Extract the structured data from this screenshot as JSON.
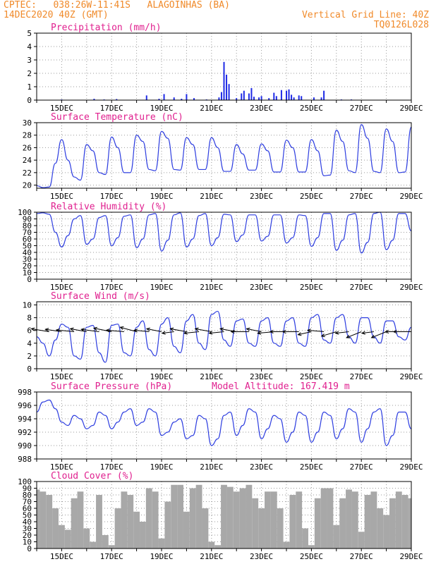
{
  "header": {
    "line1_left": "CPTEC:   038:26W-11:41S   ALAGOINHAS (BA)",
    "line2_left": "14DEC2020 40Z (GMT)",
    "line1_right": "Vertical Grid Line: 40Z",
    "line2_right": "TQ0126L028"
  },
  "colors": {
    "header_text": "#f08a2a",
    "panel_title": "#e0208f",
    "series_line": "#2f3fe0",
    "precip_bars": "#1f2be6",
    "cloud_fill": "#a8a8a8",
    "wind_arrow": "#000000"
  },
  "x_axis": {
    "tick_labels": [
      "15DEC",
      "17DEC",
      "19DEC",
      "21DEC",
      "23DEC",
      "25DEC",
      "27DEC",
      "29DEC"
    ],
    "start_day": 14.0,
    "end_day": 29.0
  },
  "chart_data": [
    {
      "type": "bar",
      "title": "Precipitation (mm/h)",
      "ylim": [
        0,
        5
      ],
      "yticks": [
        0,
        1,
        2,
        3,
        4,
        5
      ],
      "grid": true,
      "x": [
        15.0,
        16.3,
        16.7,
        17.2,
        18.4,
        18.9,
        19.1,
        19.5,
        19.8,
        20.0,
        20.3,
        20.8,
        21.3,
        21.4,
        21.5,
        21.6,
        21.7,
        22.0,
        22.2,
        22.3,
        22.5,
        22.6,
        22.7,
        22.9,
        23.0,
        23.3,
        23.5,
        23.6,
        23.8,
        24.0,
        24.1,
        24.2,
        24.3,
        24.5,
        24.6,
        25.1,
        25.4,
        25.5,
        26.2,
        26.6
      ],
      "values": [
        0.05,
        0.1,
        0.05,
        0.08,
        0.35,
        0.1,
        0.45,
        0.2,
        0.1,
        0.45,
        0.15,
        0.05,
        0.2,
        0.6,
        2.85,
        1.9,
        1.2,
        0.15,
        0.5,
        0.7,
        0.5,
        0.9,
        0.25,
        0.2,
        0.3,
        0.15,
        0.55,
        0.3,
        0.75,
        0.7,
        0.8,
        0.4,
        0.2,
        0.35,
        0.3,
        0.2,
        0.2,
        0.7,
        0.05,
        0.05
      ]
    },
    {
      "type": "line",
      "title": "Surface Temperature (nC)",
      "ylim": [
        19.5,
        30
      ],
      "yticks": [
        20,
        22,
        24,
        26,
        28,
        30
      ],
      "grid": true,
      "x": [
        14.0,
        14.25,
        14.5,
        14.75,
        15.0,
        15.25,
        15.5,
        15.75,
        16.0,
        16.25,
        16.5,
        16.75,
        17.0,
        17.25,
        17.5,
        17.75,
        18.0,
        18.25,
        18.5,
        18.75,
        19.0,
        19.25,
        19.5,
        19.75,
        20.0,
        20.25,
        20.5,
        20.75,
        21.0,
        21.25,
        21.5,
        21.75,
        22.0,
        22.25,
        22.5,
        22.75,
        23.0,
        23.25,
        23.5,
        23.75,
        24.0,
        24.25,
        24.5,
        24.75,
        25.0,
        25.25,
        25.5,
        25.75,
        26.0,
        26.25,
        26.5,
        26.75,
        27.0,
        27.25,
        27.5,
        27.75,
        28.0,
        28.25,
        28.5,
        28.75,
        29.0
      ],
      "values": [
        19.9,
        19.6,
        19.7,
        23.5,
        27.3,
        24.0,
        21.3,
        20.8,
        26.5,
        25.5,
        22.0,
        21.7,
        27.7,
        26.0,
        22.0,
        22.0,
        28.0,
        27.0,
        22.5,
        22.3,
        28.6,
        27.5,
        22.5,
        22.4,
        27.6,
        26.5,
        22.5,
        22.5,
        27.6,
        26.0,
        22.2,
        22.2,
        26.5,
        25.0,
        22.4,
        22.4,
        26.6,
        25.5,
        22.1,
        22.1,
        27.2,
        26.0,
        22.1,
        22.1,
        27.3,
        25.5,
        21.5,
        21.6,
        28.8,
        27.0,
        22.3,
        22.0,
        29.7,
        27.5,
        22.2,
        22.0,
        29.0,
        27.0,
        22.0,
        22.1,
        29.3
      ]
    },
    {
      "type": "line",
      "title": "Relative Humidity (%)",
      "ylim": [
        0,
        100
      ],
      "yticks": [
        0,
        10,
        20,
        30,
        40,
        50,
        60,
        70,
        80,
        90,
        100
      ],
      "grid": true,
      "x": [
        14.0,
        14.25,
        14.5,
        14.75,
        15.0,
        15.25,
        15.5,
        15.75,
        16.0,
        16.25,
        16.5,
        16.75,
        17.0,
        17.25,
        17.5,
        17.75,
        18.0,
        18.25,
        18.5,
        18.75,
        19.0,
        19.25,
        19.5,
        19.75,
        20.0,
        20.25,
        20.5,
        20.75,
        21.0,
        21.25,
        21.5,
        21.75,
        22.0,
        22.25,
        22.5,
        22.75,
        23.0,
        23.25,
        23.5,
        23.75,
        24.0,
        24.25,
        24.5,
        24.75,
        25.0,
        25.25,
        25.5,
        25.75,
        26.0,
        26.25,
        26.5,
        26.75,
        27.0,
        27.25,
        27.5,
        27.75,
        28.0,
        28.25,
        28.5,
        28.75,
        29.0
      ],
      "values": [
        98,
        99,
        97,
        70,
        48,
        65,
        90,
        95,
        52,
        60,
        92,
        95,
        50,
        62,
        94,
        96,
        47,
        60,
        96,
        98,
        42,
        58,
        96,
        99,
        48,
        60,
        95,
        98,
        50,
        62,
        97,
        96,
        56,
        66,
        96,
        96,
        57,
        64,
        96,
        96,
        54,
        62,
        96,
        95,
        49,
        62,
        98,
        98,
        43,
        58,
        96,
        98,
        39,
        55,
        98,
        100,
        44,
        58,
        98,
        98,
        72
      ]
    },
    {
      "type": "line",
      "title": "Surface Wind (m/s)",
      "ylim": [
        0,
        10.5
      ],
      "yticks": [
        0,
        2,
        4,
        6,
        8,
        10
      ],
      "grid": true,
      "x": [
        14.0,
        14.25,
        14.5,
        14.75,
        15.0,
        15.25,
        15.5,
        15.75,
        16.0,
        16.25,
        16.5,
        16.75,
        17.0,
        17.25,
        17.5,
        17.75,
        18.0,
        18.25,
        18.5,
        18.75,
        19.0,
        19.25,
        19.5,
        19.75,
        20.0,
        20.25,
        20.5,
        20.75,
        21.0,
        21.25,
        21.5,
        21.75,
        22.0,
        22.25,
        22.5,
        22.75,
        23.0,
        23.25,
        23.5,
        23.75,
        24.0,
        24.25,
        24.5,
        24.75,
        25.0,
        25.25,
        25.5,
        25.75,
        26.0,
        26.25,
        26.5,
        26.75,
        27.0,
        27.25,
        27.5,
        27.75,
        28.0,
        28.25,
        28.5,
        28.75,
        29.0
      ],
      "values": [
        5.0,
        4.0,
        2.0,
        4.5,
        7.0,
        6.5,
        2.0,
        1.5,
        6.5,
        6.8,
        2.5,
        1.0,
        6.8,
        7.0,
        2.5,
        2.0,
        6.5,
        7.5,
        3.0,
        2.0,
        7.0,
        8.0,
        3.5,
        2.5,
        7.5,
        8.5,
        4.0,
        3.0,
        8.5,
        9.0,
        4.5,
        3.5,
        7.5,
        7.8,
        4.0,
        3.5,
        7.5,
        8.0,
        4.0,
        3.5,
        7.5,
        8.0,
        4.0,
        3.5,
        8.0,
        8.5,
        4.5,
        4.0,
        8.0,
        8.5,
        5.0,
        4.0,
        8.0,
        8.0,
        5.0,
        4.0,
        7.5,
        7.5,
        5.0,
        4.5,
        6.5
      ],
      "arrows": {
        "y": 5.8,
        "x": [
          14.5,
          15.0,
          15.5,
          16.0,
          16.5,
          17.0,
          17.5,
          18.0,
          18.5,
          19.0,
          19.5,
          20.0,
          20.5,
          21.0,
          21.5,
          22.0,
          22.5,
          23.0,
          23.5,
          24.0,
          24.5,
          25.0,
          25.5,
          26.0,
          26.5,
          27.0,
          27.5,
          28.0,
          28.5,
          29.0
        ],
        "u": [
          -6,
          -5.5,
          -6,
          -5.5,
          -6,
          -6,
          -6,
          -5.5,
          -5,
          -5,
          -4,
          -5.5,
          -5,
          -5.5,
          -5,
          -5.5,
          -6,
          -5,
          -5.5,
          -5.5,
          -5.5,
          -4.5,
          -5.5,
          -5,
          -4.5,
          -5,
          -4,
          -5,
          -4.5,
          -6
        ],
        "v": [
          1,
          0.8,
          0.6,
          1,
          0.8,
          1.2,
          0.5,
          1.5,
          0.5,
          1,
          -0.5,
          1,
          -0.5,
          1,
          -0.5,
          1,
          0,
          1,
          -0.5,
          0,
          0,
          -1,
          0.5,
          -1.5,
          -0.5,
          -2,
          -0.5,
          -2,
          0,
          0
        ]
      }
    },
    {
      "type": "line",
      "title": "Surface Pressure (hPa)",
      "annotation": "Model Altitude: 167.419 m",
      "ylim": [
        988,
        998
      ],
      "yticks": [
        988,
        990,
        992,
        994,
        996,
        998
      ],
      "grid": true,
      "x": [
        14.0,
        14.25,
        14.5,
        14.75,
        15.0,
        15.25,
        15.5,
        15.75,
        16.0,
        16.25,
        16.5,
        16.75,
        17.0,
        17.25,
        17.5,
        17.75,
        18.0,
        18.25,
        18.5,
        18.75,
        19.0,
        19.25,
        19.5,
        19.75,
        20.0,
        20.25,
        20.5,
        20.75,
        21.0,
        21.25,
        21.5,
        21.75,
        22.0,
        22.25,
        22.5,
        22.75,
        23.0,
        23.25,
        23.5,
        23.75,
        24.0,
        24.25,
        24.5,
        24.75,
        25.0,
        25.25,
        25.5,
        25.75,
        26.0,
        26.25,
        26.5,
        26.75,
        27.0,
        27.25,
        27.5,
        27.75,
        28.0,
        28.25,
        28.5,
        28.75,
        29.0
      ],
      "values": [
        995.0,
        996.5,
        996.8,
        995.5,
        993.5,
        993.0,
        994.5,
        994.0,
        992.5,
        993.0,
        995.0,
        994.5,
        992.5,
        993.5,
        995.0,
        995.5,
        993.0,
        993.5,
        995.5,
        995.0,
        991.5,
        992.0,
        993.5,
        994.0,
        991.0,
        991.5,
        994.5,
        994.0,
        990.0,
        991.0,
        994.5,
        995.0,
        991.5,
        993.0,
        995.5,
        995.0,
        991.0,
        992.5,
        994.5,
        994.0,
        990.5,
        992.0,
        995.0,
        994.5,
        990.5,
        992.0,
        995.0,
        994.5,
        991.0,
        992.5,
        995.5,
        995.0,
        990.5,
        992.5,
        995.0,
        995.5,
        990.0,
        991.5,
        995.0,
        995.0,
        992.5
      ]
    },
    {
      "type": "bar",
      "title": "Cloud Cover (%)",
      "ylim": [
        0,
        100
      ],
      "yticks": [
        0,
        10,
        20,
        30,
        40,
        50,
        60,
        70,
        80,
        90,
        100
      ],
      "grid": true,
      "x": [
        14.0,
        14.25,
        14.5,
        14.75,
        15.0,
        15.25,
        15.5,
        15.75,
        16.0,
        16.25,
        16.5,
        16.75,
        17.0,
        17.25,
        17.5,
        17.75,
        18.0,
        18.25,
        18.5,
        18.75,
        19.0,
        19.25,
        19.5,
        19.75,
        20.0,
        20.25,
        20.5,
        20.75,
        21.0,
        21.25,
        21.5,
        21.75,
        22.0,
        22.25,
        22.5,
        22.75,
        23.0,
        23.25,
        23.5,
        23.75,
        24.0,
        24.25,
        24.5,
        24.75,
        25.0,
        25.25,
        25.5,
        25.75,
        26.0,
        26.25,
        26.5,
        26.75,
        27.0,
        27.25,
        27.5,
        27.75,
        28.0,
        28.25,
        28.5,
        28.75,
        29.0
      ],
      "values": [
        88,
        85,
        80,
        60,
        35,
        28,
        75,
        85,
        30,
        10,
        80,
        20,
        5,
        60,
        85,
        80,
        55,
        40,
        90,
        85,
        15,
        70,
        95,
        95,
        55,
        90,
        95,
        60,
        10,
        5,
        95,
        92,
        85,
        90,
        95,
        75,
        60,
        85,
        85,
        60,
        10,
        80,
        85,
        30,
        5,
        75,
        90,
        90,
        35,
        75,
        88,
        85,
        25,
        80,
        85,
        60,
        50,
        75,
        85,
        80,
        75
      ]
    }
  ]
}
